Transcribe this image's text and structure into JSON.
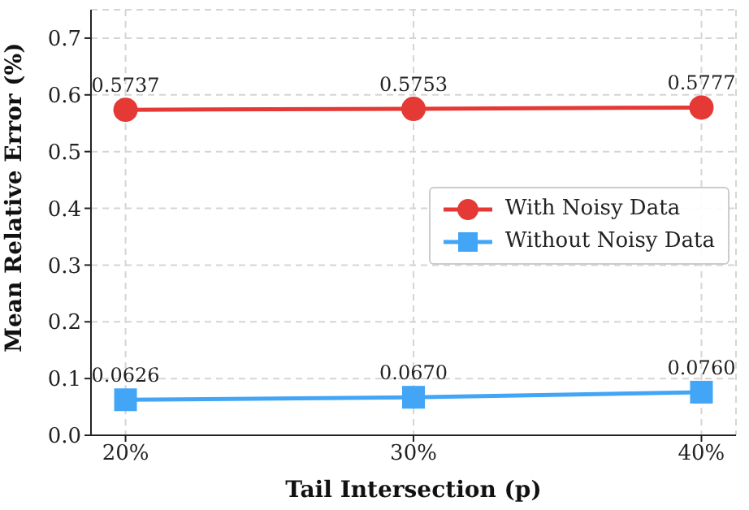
{
  "chart_data": {
    "type": "line",
    "xlabel": "Tail Intersection (p)",
    "ylabel": "Mean Relative Error (%)",
    "categories": [
      "20%",
      "30%",
      "40%"
    ],
    "series": [
      {
        "name": "With Noisy Data",
        "color": "#e53935",
        "marker": "circle",
        "values": [
          0.5737,
          0.5753,
          0.5777
        ],
        "value_labels": [
          "0.5737",
          "0.5753",
          "0.5777"
        ]
      },
      {
        "name": "Without Noisy Data",
        "color": "#42a5f5",
        "marker": "square",
        "values": [
          0.0626,
          0.067,
          0.076
        ],
        "value_labels": [
          "0.0626",
          "0.0670",
          "0.0760"
        ]
      }
    ],
    "ylim": [
      0,
      0.75
    ],
    "yticks": [
      {
        "value": 0,
        "label": "0.0"
      },
      0.1,
      0.2,
      0.3,
      0.4,
      0.5,
      0.6,
      0.7
    ],
    "grid": true,
    "legend": "right",
    "line_style": "solid"
  }
}
